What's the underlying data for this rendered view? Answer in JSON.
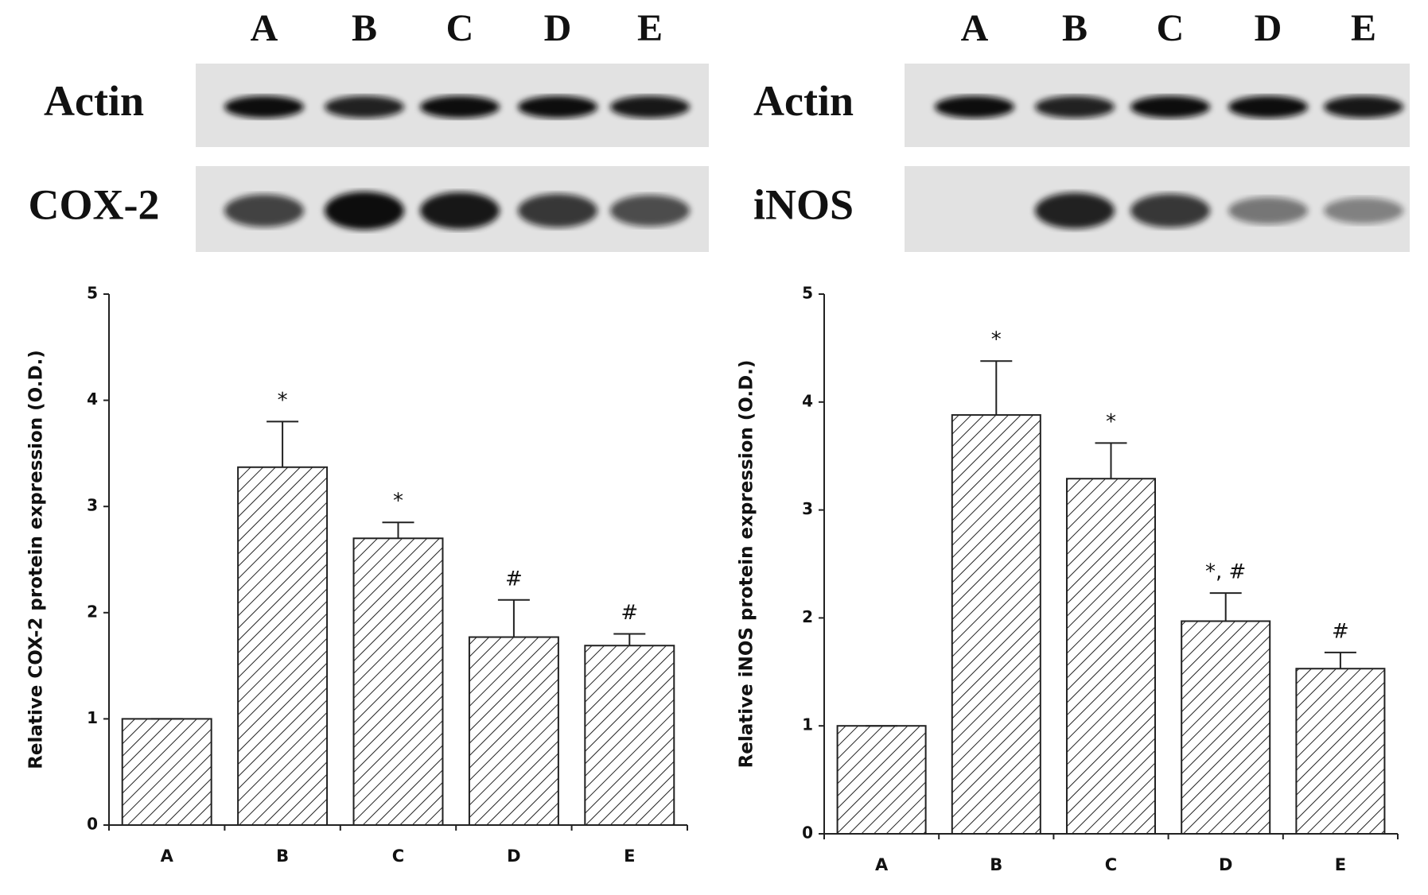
{
  "blots": [
    {
      "lanes": [
        "A",
        "B",
        "C",
        "D",
        "E"
      ],
      "rows": [
        "Actin",
        "COX-2"
      ]
    },
    {
      "lanes": [
        "A",
        "B",
        "C",
        "D",
        "E"
      ],
      "rows": [
        "Actin",
        "iNOS"
      ]
    }
  ],
  "chart_data": [
    {
      "type": "bar",
      "y_label": "Relative COX-2 protein expression (O.D.)",
      "categories": [
        "A",
        "B",
        "C",
        "D",
        "E"
      ],
      "values": [
        1.0,
        3.37,
        2.7,
        1.77,
        1.69
      ],
      "errors": [
        0,
        0.43,
        0.15,
        0.35,
        0.11
      ],
      "annotations": [
        null,
        "*",
        "*",
        "#",
        "#"
      ],
      "ylim": [
        0,
        5
      ],
      "yticks": [
        0,
        1,
        2,
        3,
        4,
        5
      ],
      "hatch": true
    },
    {
      "type": "bar",
      "y_label": "Relative iNOS protein expression (O.D.)",
      "categories": [
        "A",
        "B",
        "C",
        "D",
        "E"
      ],
      "values": [
        1.0,
        3.88,
        3.29,
        1.97,
        1.53
      ],
      "errors": [
        0,
        0.5,
        0.33,
        0.26,
        0.15
      ],
      "annotations": [
        null,
        "*",
        "*",
        "*, #",
        "#"
      ],
      "ylim": [
        0,
        5
      ],
      "yticks": [
        0,
        1,
        2,
        3,
        4,
        5
      ],
      "hatch": true
    }
  ]
}
